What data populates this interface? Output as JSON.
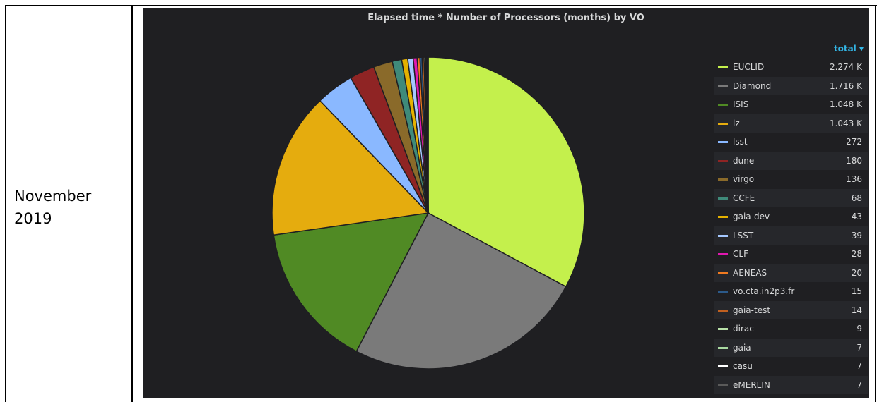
{
  "row_label": "November\n2019",
  "panel": {
    "title": "Elapsed time * Number of Processors (months) by VO",
    "legend_header": "total ▾"
  },
  "chart_data": {
    "type": "pie",
    "title": "Elapsed time * Number of Processors (months) by VO",
    "legend_placement": "right",
    "legend_column": "total",
    "series": [
      {
        "name": "EUCLID",
        "value": 2274,
        "label": "2.274 K",
        "color": "#c4f04c"
      },
      {
        "name": "Diamond",
        "value": 1716,
        "label": "1.716 K",
        "color": "#7a7a7a"
      },
      {
        "name": "ISIS",
        "value": 1048,
        "label": "1.048 K",
        "color": "#508a24"
      },
      {
        "name": "lz",
        "value": 1043,
        "label": "1.043 K",
        "color": "#e5ac0e"
      },
      {
        "name": "lsst",
        "value": 272,
        "label": "272",
        "color": "#8ab8ff"
      },
      {
        "name": "dune",
        "value": 180,
        "label": "180",
        "color": "#8f2424"
      },
      {
        "name": "virgo",
        "value": 136,
        "label": "136",
        "color": "#8a6a2a"
      },
      {
        "name": "CCFE",
        "value": 68,
        "label": "68",
        "color": "#3f8a7a"
      },
      {
        "name": "gaia-dev",
        "value": 43,
        "label": "43",
        "color": "#e5b100"
      },
      {
        "name": "LSST",
        "value": 39,
        "label": "39",
        "color": "#a5c8ff"
      },
      {
        "name": "CLF",
        "value": 28,
        "label": "28",
        "color": "#e018b0"
      },
      {
        "name": "AENEAS",
        "value": 20,
        "label": "20",
        "color": "#f07a20"
      },
      {
        "name": "vo.cta.in2p3.fr",
        "value": 15,
        "label": "15",
        "color": "#2c5a8a"
      },
      {
        "name": "gaia-test",
        "value": 14,
        "label": "14",
        "color": "#c06020"
      },
      {
        "name": "dirac",
        "value": 9,
        "label": "9",
        "color": "#b8e0a8"
      },
      {
        "name": "gaia",
        "value": 7,
        "label": "7",
        "color": "#a8d8a0"
      },
      {
        "name": "casu",
        "value": 7,
        "label": "7",
        "color": "#ffffff"
      },
      {
        "name": "eMERLIN",
        "value": 7,
        "label": "7",
        "color": "#5a5a5a"
      }
    ]
  }
}
